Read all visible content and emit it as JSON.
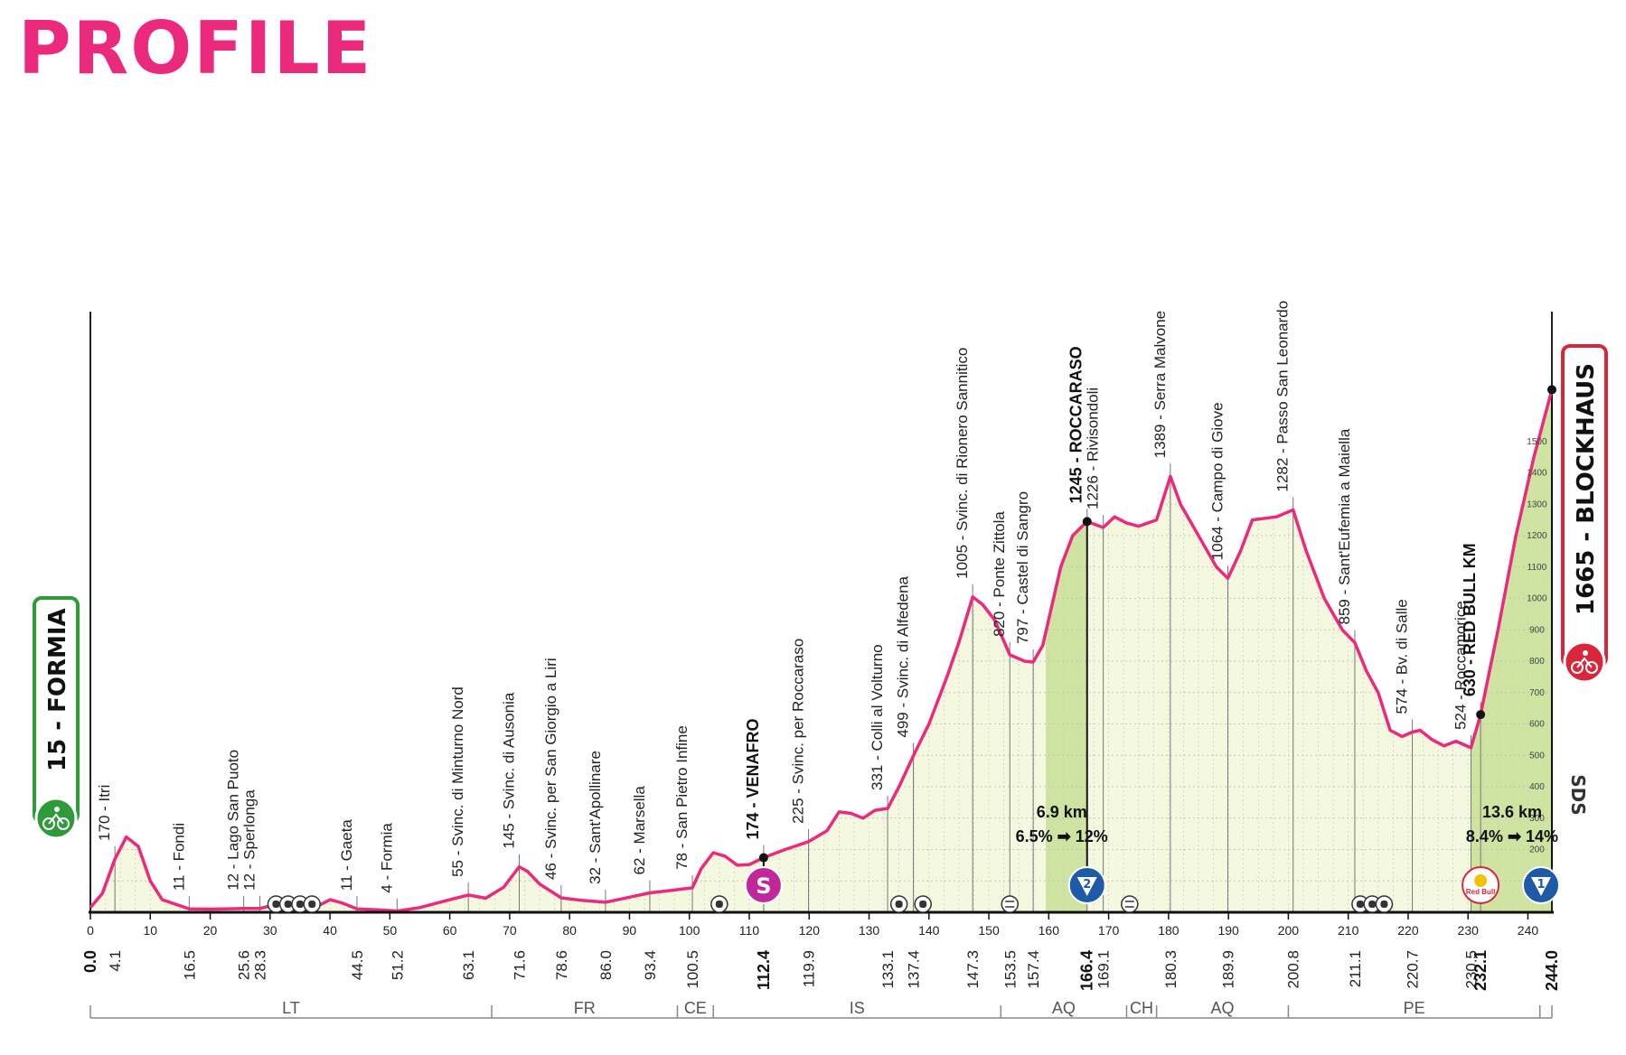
{
  "title": "PROFILE",
  "colors": {
    "accent": "#ec2a7d",
    "fill": "#f3f8df",
    "climb_fill": "#cfe4a0",
    "start_green": "#2e9a3a",
    "finish_red": "#d9263a",
    "kom_blue": "#1e5aa8",
    "sprint_magenta": "#c0289a"
  },
  "start": {
    "label": "15 - FORMIA"
  },
  "finish": {
    "label": "1665 - BLOCKHAUS"
  },
  "chart_data": {
    "type": "area",
    "title": "",
    "xlabel": "",
    "ylabel": "",
    "xlim": [
      0,
      244
    ],
    "ylim": [
      0,
      1800
    ],
    "x_ticks": [
      0,
      10,
      20,
      30,
      40,
      50,
      60,
      70,
      80,
      90,
      100,
      110,
      120,
      130,
      140,
      150,
      160,
      170,
      180,
      190,
      200,
      210,
      220,
      230,
      240
    ],
    "alt_ticks": [
      100,
      200,
      300,
      400,
      500,
      600,
      700,
      800,
      900,
      1000,
      1100,
      1200,
      1300,
      1400,
      1500
    ],
    "profile": [
      [
        0,
        15
      ],
      [
        2,
        60
      ],
      [
        4.1,
        170
      ],
      [
        6,
        240
      ],
      [
        8,
        210
      ],
      [
        10,
        100
      ],
      [
        12,
        40
      ],
      [
        16.5,
        11
      ],
      [
        20,
        10
      ],
      [
        25.6,
        12
      ],
      [
        28.3,
        12
      ],
      [
        30,
        20
      ],
      [
        32,
        35
      ],
      [
        34,
        25
      ],
      [
        35,
        40
      ],
      [
        36,
        15
      ],
      [
        38,
        20
      ],
      [
        40,
        40
      ],
      [
        42,
        30
      ],
      [
        44.5,
        11
      ],
      [
        48,
        8
      ],
      [
        51.2,
        4
      ],
      [
        55,
        15
      ],
      [
        60,
        40
      ],
      [
        63.1,
        55
      ],
      [
        66,
        45
      ],
      [
        69,
        80
      ],
      [
        71.6,
        145
      ],
      [
        73,
        130
      ],
      [
        75,
        90
      ],
      [
        78.6,
        46
      ],
      [
        82,
        38
      ],
      [
        86,
        32
      ],
      [
        90,
        48
      ],
      [
        93.4,
        62
      ],
      [
        97,
        70
      ],
      [
        100.5,
        78
      ],
      [
        102,
        140
      ],
      [
        104,
        190
      ],
      [
        106,
        178
      ],
      [
        108,
        150
      ],
      [
        110,
        152
      ],
      [
        112.4,
        174
      ],
      [
        116,
        200
      ],
      [
        119.9,
        225
      ],
      [
        123,
        260
      ],
      [
        125,
        320
      ],
      [
        127,
        315
      ],
      [
        129,
        300
      ],
      [
        131,
        325
      ],
      [
        133.1,
        331
      ],
      [
        135,
        400
      ],
      [
        137.4,
        499
      ],
      [
        140,
        600
      ],
      [
        143,
        750
      ],
      [
        145,
        860
      ],
      [
        147.3,
        1005
      ],
      [
        149,
        980
      ],
      [
        151,
        930
      ],
      [
        153.5,
        820
      ],
      [
        156,
        800
      ],
      [
        157.4,
        797
      ],
      [
        159,
        850
      ],
      [
        162,
        1100
      ],
      [
        164,
        1200
      ],
      [
        166.4,
        1245
      ],
      [
        169.1,
        1226
      ],
      [
        171,
        1260
      ],
      [
        173,
        1240
      ],
      [
        175,
        1230
      ],
      [
        178,
        1250
      ],
      [
        180.3,
        1389
      ],
      [
        182,
        1300
      ],
      [
        185,
        1200
      ],
      [
        188,
        1100
      ],
      [
        189.9,
        1064
      ],
      [
        192,
        1150
      ],
      [
        194,
        1250
      ],
      [
        198,
        1260
      ],
      [
        200.8,
        1282
      ],
      [
        203,
        1150
      ],
      [
        206,
        1000
      ],
      [
        209,
        900
      ],
      [
        211.1,
        859
      ],
      [
        213,
        770
      ],
      [
        215,
        700
      ],
      [
        217,
        580
      ],
      [
        219,
        560
      ],
      [
        220.7,
        574
      ],
      [
        222,
        580
      ],
      [
        224,
        550
      ],
      [
        226,
        530
      ],
      [
        228,
        545
      ],
      [
        230.5,
        524
      ],
      [
        232.1,
        630
      ],
      [
        235,
        900
      ],
      [
        238,
        1200
      ],
      [
        241,
        1450
      ],
      [
        244,
        1665
      ]
    ],
    "top_labels": [
      {
        "km": 4.1,
        "text": "170 - Itri",
        "bold": false
      },
      {
        "km": 16.5,
        "text": "11 - Fondi",
        "bold": false
      },
      {
        "km": 25.6,
        "text": "12 - Lago San Puoto",
        "bold": false
      },
      {
        "km": 28.3,
        "text": "12 - Sperlonga",
        "bold": false
      },
      {
        "km": 44.5,
        "text": "11 - Gaeta",
        "bold": false
      },
      {
        "km": 51.2,
        "text": "4 - Formia",
        "bold": false
      },
      {
        "km": 63.1,
        "text": "55 - Svinc. di Minturno Nord",
        "bold": false
      },
      {
        "km": 71.6,
        "text": "145 - Svinc. di Ausonia",
        "bold": false
      },
      {
        "km": 78.6,
        "text": "46 - Svinc. per San Giorgio a Liri",
        "bold": false
      },
      {
        "km": 86.0,
        "text": "32 - Sant'Apollinare",
        "bold": false
      },
      {
        "km": 93.4,
        "text": "62 - Marsella",
        "bold": false
      },
      {
        "km": 100.5,
        "text": "78 - San Pietro Infine",
        "bold": false
      },
      {
        "km": 112.4,
        "text": "174 - VENAFRO",
        "bold": true
      },
      {
        "km": 119.9,
        "text": "225 - Svinc. per Roccaraso",
        "bold": false
      },
      {
        "km": 133.1,
        "text": "331 - Colli al Volturno",
        "bold": false
      },
      {
        "km": 137.4,
        "text": "499 - Svinc. di Alfedena",
        "bold": false
      },
      {
        "km": 147.3,
        "text": "1005 - Svinc. di Rionero Sannitico",
        "bold": false
      },
      {
        "km": 153.5,
        "text": "820 - Ponte Zittola",
        "bold": false
      },
      {
        "km": 157.4,
        "text": "797 - Castel di Sangro",
        "bold": false
      },
      {
        "km": 166.4,
        "text": "1245 - ROCCARASO",
        "bold": true
      },
      {
        "km": 169.1,
        "text": "1226 - Rivisondoli",
        "bold": false
      },
      {
        "km": 180.3,
        "text": "1389 - Serra Malvone",
        "bold": false
      },
      {
        "km": 189.9,
        "text": "1064 - Campo di Giove",
        "bold": false
      },
      {
        "km": 200.8,
        "text": "1282 - Passo San Leonardo",
        "bold": false
      },
      {
        "km": 211.1,
        "text": "859 - Sant'Eufemia a Maiella",
        "bold": false
      },
      {
        "km": 220.7,
        "text": "574 - Bv. di Salle",
        "bold": false
      },
      {
        "km": 230.5,
        "text": "524 - Roccamorice",
        "bold": false
      },
      {
        "km": 232.1,
        "text": "630 - RED BULL KM",
        "bold": true
      }
    ],
    "km_labels": [
      {
        "km": 0,
        "text": "0.0",
        "bold": true
      },
      {
        "km": 4.1,
        "text": "4.1",
        "bold": false
      },
      {
        "km": 16.5,
        "text": "16.5",
        "bold": false
      },
      {
        "km": 25.6,
        "text": "25.6",
        "bold": false
      },
      {
        "km": 28.3,
        "text": "28.3",
        "bold": false
      },
      {
        "km": 44.5,
        "text": "44.5",
        "bold": false
      },
      {
        "km": 51.2,
        "text": "51.2",
        "bold": false
      },
      {
        "km": 63.1,
        "text": "63.1",
        "bold": false
      },
      {
        "km": 71.6,
        "text": "71.6",
        "bold": false
      },
      {
        "km": 78.6,
        "text": "78.6",
        "bold": false
      },
      {
        "km": 86.0,
        "text": "86.0",
        "bold": false
      },
      {
        "km": 93.4,
        "text": "93.4",
        "bold": false
      },
      {
        "km": 100.5,
        "text": "100.5",
        "bold": false
      },
      {
        "km": 112.4,
        "text": "112.4",
        "bold": true
      },
      {
        "km": 119.9,
        "text": "119.9",
        "bold": false
      },
      {
        "km": 133.1,
        "text": "133.1",
        "bold": false
      },
      {
        "km": 137.4,
        "text": "137.4",
        "bold": false
      },
      {
        "km": 147.3,
        "text": "147.3",
        "bold": false
      },
      {
        "km": 153.5,
        "text": "153.5",
        "bold": false
      },
      {
        "km": 157.4,
        "text": "157.4",
        "bold": false
      },
      {
        "km": 166.4,
        "text": "166.4",
        "bold": true
      },
      {
        "km": 169.1,
        "text": "169.1",
        "bold": false
      },
      {
        "km": 180.3,
        "text": "180.3",
        "bold": false
      },
      {
        "km": 189.9,
        "text": "189.9",
        "bold": false
      },
      {
        "km": 200.8,
        "text": "200.8",
        "bold": false
      },
      {
        "km": 211.1,
        "text": "211.1",
        "bold": false
      },
      {
        "km": 220.7,
        "text": "220.7",
        "bold": false
      },
      {
        "km": 230.5,
        "text": "230.5",
        "bold": false
      },
      {
        "km": 232.1,
        "text": "232.1",
        "bold": true
      },
      {
        "km": 244.0,
        "text": "244.0",
        "bold": true
      }
    ],
    "provinces": [
      {
        "from": 0,
        "to": 67,
        "label": "LT"
      },
      {
        "from": 67,
        "to": 98,
        "label": "FR"
      },
      {
        "from": 98,
        "to": 104,
        "label": "CE"
      },
      {
        "from": 104,
        "to": 152,
        "label": "IS"
      },
      {
        "from": 152,
        "to": 173,
        "label": "AQ"
      },
      {
        "from": 173,
        "to": 178,
        "label": "CH"
      },
      {
        "from": 178,
        "to": 200,
        "label": "AQ"
      },
      {
        "from": 200,
        "to": 242,
        "label": "PE"
      },
      {
        "from": 242,
        "to": 244,
        "label": ""
      }
    ],
    "climbs": [
      {
        "from": 159.5,
        "to": 166.4,
        "category": "2",
        "length": "6.9 km",
        "gradient": "6.5% ➡ 12%"
      },
      {
        "from": 230.5,
        "to": 244.0,
        "category": "1",
        "length": "13.6 km",
        "gradient": "8.4% ➡ 14%"
      }
    ],
    "sprint": {
      "km": 112.4,
      "label": "S"
    },
    "red_bull": {
      "km": 232.1,
      "label": "Red Bull"
    },
    "tunnels": [
      31,
      33,
      35,
      37,
      105,
      135,
      139,
      212,
      214,
      216
    ],
    "crossings": [
      153.5,
      173.5
    ],
    "side_label": "SDS"
  }
}
